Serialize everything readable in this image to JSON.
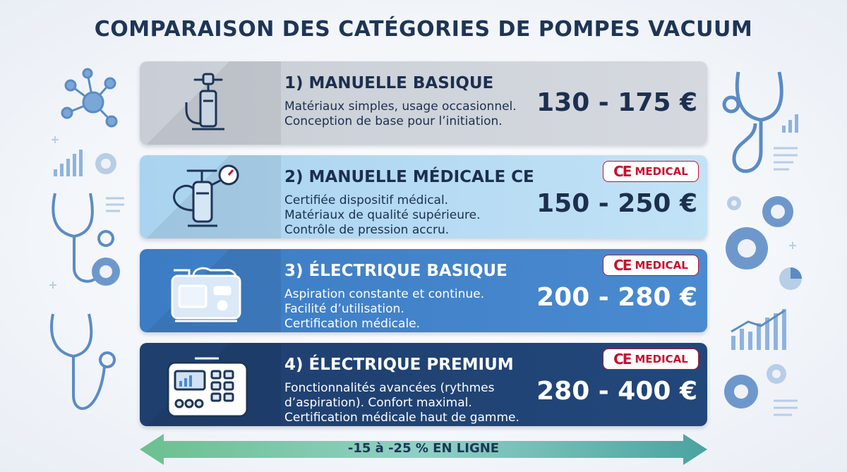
{
  "title": "COMPARAISON DES CATÉGORIES DE POMPES VACUUM",
  "colors": {
    "ce_red": "#c8102e",
    "navy": "#1e3556",
    "green_arrow": "#5ab48f"
  },
  "categories": [
    {
      "name": "1) MANUELLE BASIQUE",
      "icon": "hand-pump-icon",
      "description": [
        "Matériaux simples, usage occasionnel.",
        "Conception de base pour l’initiation."
      ],
      "price": "130 - 175 €",
      "badge": null
    },
    {
      "name": "2) MANUELLE MÉDICALE CE",
      "icon": "manometer-pump-icon",
      "description": [
        "Certifiée dispositif médical.",
        "Matériaux de qualité supérieure.",
        "Contrôle de pression accru."
      ],
      "price": "150 - 250 €",
      "badge": {
        "mark": "CE",
        "label": "MEDICAL"
      }
    },
    {
      "name": "3) ÉLECTRIQUE BASIQUE",
      "icon": "electric-pump-icon",
      "description": [
        "Aspiration constante et continue.",
        "Facilité d’utilisation.",
        "Certification médicale."
      ],
      "price": "200 - 280 €",
      "badge": {
        "mark": "CE",
        "label": "MEDICAL"
      }
    },
    {
      "name": "4) ÉLECTRIQUE PREMIUM",
      "icon": "premium-device-icon",
      "description": [
        "Fonctionnalités avancées (rythmes",
        "d’aspiration). Confort maximal.",
        "Certification médicale haut de gamme."
      ],
      "price": "280 - 400 €",
      "badge": {
        "mark": "CE",
        "label": "MEDICAL"
      }
    }
  ],
  "footer": {
    "arrow_text": "-15 à -25 % EN LIGNE",
    "icon": "double-arrow-icon"
  }
}
